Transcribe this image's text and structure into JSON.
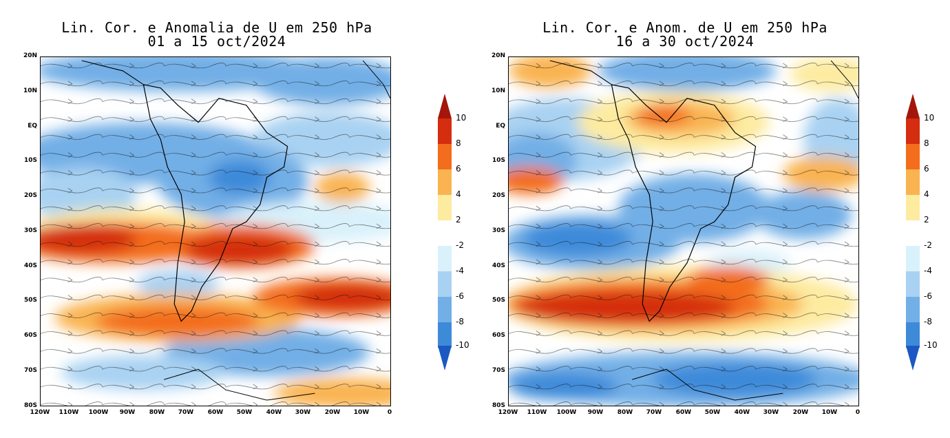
{
  "panels": [
    {
      "title_line1": "Lin. Cor. e Anomalia de U em 250 hPa",
      "title_line2": "01 a 15 oct/2024"
    },
    {
      "title_line1": "Lin. Cor. e Anom. de U em 250 hPa",
      "title_line2": "16 a 30 oct/2024"
    }
  ],
  "axes": {
    "lat_labels": [
      "20N",
      "10N",
      "EQ",
      "10S",
      "20S",
      "30S",
      "40S",
      "50S",
      "60S",
      "70S",
      "80S"
    ],
    "lon_labels": [
      "120W",
      "110W",
      "100W",
      "90W",
      "80W",
      "70W",
      "60W",
      "50W",
      "40W",
      "30W",
      "20W",
      "10W",
      "0"
    ]
  },
  "colorbar": {
    "labels": [
      "10",
      "8",
      "6",
      "4",
      "2",
      "-2",
      "-4",
      "-6",
      "-8",
      "-10"
    ],
    "colors": [
      "#d42d0f",
      "#f36d1d",
      "#f9b451",
      "#fdeba0",
      "#ffffff",
      "#d9f1fb",
      "#a9d2f2",
      "#72afe6",
      "#3d8ad9",
      "#1d62c8"
    ],
    "arrow_top": "#a4160b",
    "arrow_bottom": "#1c58c2"
  }
}
